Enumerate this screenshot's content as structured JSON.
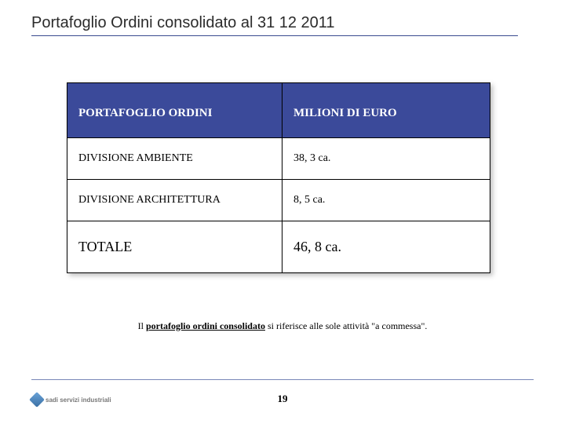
{
  "title": "Portafoglio Ordini consolidato al 31 12 2011",
  "table": {
    "header": {
      "left": "PORTAFOGLIO ORDINI",
      "right": "MILIONI DI EURO"
    },
    "rows": [
      {
        "left": "DIVISIONE AMBIENTE",
        "right": "38, 3 ca."
      },
      {
        "left": "DIVISIONE ARCHITETTURA",
        "right": "8, 5  ca."
      }
    ],
    "total": {
      "left": "TOTALE",
      "right": "46, 8  ca."
    },
    "header_bg": "#3b4a9a",
    "header_fg": "#ffffff",
    "border_color": "#000000"
  },
  "footnote": {
    "prefix": "Il ",
    "underlined": "portafoglio ordini consolidato",
    "suffix": " si riferisce alle sole attività \"a commessa\"."
  },
  "page_number": "19",
  "logo_text": "sadi servizi industriali"
}
